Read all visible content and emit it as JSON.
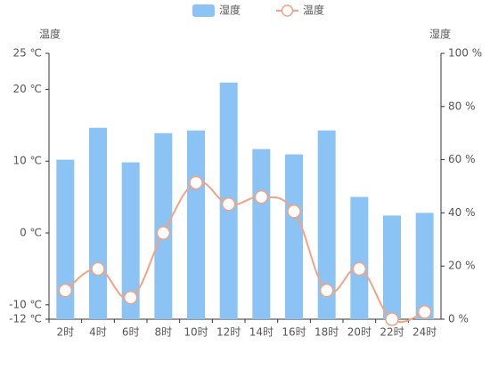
{
  "chart_data": {
    "type": "bar-line",
    "y_label": "温度",
    "y2_label": "湿度",
    "categories": [
      "2时",
      "4时",
      "6时",
      "8时",
      "10时",
      "12时",
      "14时",
      "16时",
      "18时",
      "20时",
      "22时",
      "24时"
    ],
    "series": [
      {
        "name": "湿度",
        "type": "bar",
        "axis": "y2",
        "color": "#8bc3f5",
        "values": [
          60,
          72,
          59,
          70,
          71,
          89,
          64,
          62,
          71,
          46,
          39,
          40
        ]
      },
      {
        "name": "温度",
        "type": "line",
        "axis": "y",
        "color": "#f2a385",
        "smooth": true,
        "values": [
          -8,
          -5,
          -9,
          0,
          7,
          4,
          5,
          3,
          -8,
          -5,
          -12,
          -11
        ]
      }
    ],
    "ylim": [
      -12,
      25
    ],
    "yticks": [
      {
        "value": -12,
        "label": "-12 ℃"
      },
      {
        "value": -10,
        "label": "-10 ℃"
      },
      {
        "value": 0,
        "label": "0 ℃"
      },
      {
        "value": 10,
        "label": "10 ℃"
      },
      {
        "value": 20,
        "label": "20 ℃"
      },
      {
        "value": 25,
        "label": "25 ℃"
      }
    ],
    "y2lim": [
      0,
      100
    ],
    "y2ticks": [
      {
        "value": 0,
        "label": "0 %"
      },
      {
        "value": 20,
        "label": "20 %"
      },
      {
        "value": 40,
        "label": "40 %"
      },
      {
        "value": 60,
        "label": "60 %"
      },
      {
        "value": 80,
        "label": "80 %"
      },
      {
        "value": 100,
        "label": "100 %"
      }
    ],
    "grid": false,
    "legend": "top"
  }
}
